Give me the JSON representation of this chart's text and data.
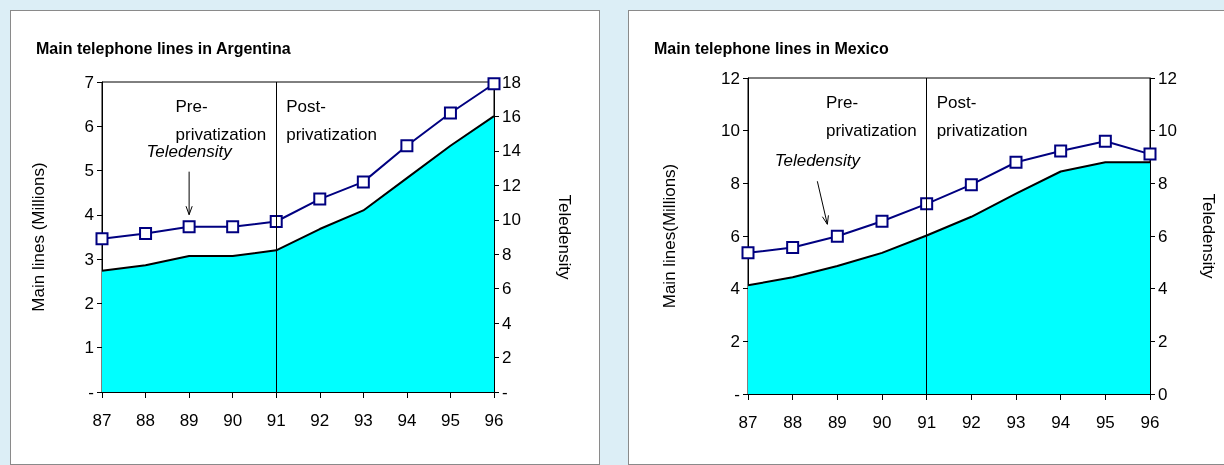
{
  "chart_data": [
    {
      "type": "area",
      "title": "Main telephone lines in Argentina",
      "ylabel": "Main lines (Millions)",
      "y2label": "Teledensity",
      "categories": [
        "87",
        "88",
        "89",
        "90",
        "91",
        "92",
        "93",
        "94",
        "95",
        "96"
      ],
      "series": [
        {
          "color": "#00ffff",
          "values": [
            2.74,
            2.86,
            3.07,
            3.07,
            3.2,
            3.68,
            4.1,
            4.83,
            5.56,
            6.23
          ]
        },
        {
          "type": "line",
          "name": "Teledensity",
          "axis": "y2",
          "color": "#000080",
          "marker": "square",
          "values": [
            8.9,
            9.2,
            9.6,
            9.6,
            9.9,
            11.2,
            12.2,
            14.3,
            16.2,
            17.9
          ]
        }
      ],
      "ylim": [
        0,
        7
      ],
      "yticks": [
        {
          "value": 0,
          "label": "-"
        },
        1,
        2,
        3,
        4,
        5,
        6,
        7
      ],
      "y2lim": [
        0,
        18
      ],
      "y2ticks": [
        {
          "value": 0,
          "label": "-"
        },
        2,
        4,
        6,
        8,
        10,
        12,
        14,
        16,
        18
      ],
      "ref_lines": [
        {
          "axis": "x",
          "value": "91",
          "color": "#000000"
        }
      ],
      "annotations": [
        "Pre-\nprivatization",
        "Post-\nprivatization"
      ],
      "grid": false,
      "legend": false
    },
    {
      "type": "area",
      "title": "Main telephone lines in Mexico",
      "ylabel": "Main lines(Millions)",
      "y2label": "Teledensity",
      "categories": [
        "87",
        "88",
        "89",
        "90",
        "91",
        "92",
        "93",
        "94",
        "95",
        "96"
      ],
      "series": [
        {
          "color": "#00ffff",
          "values": [
            4.13,
            4.43,
            4.86,
            5.36,
            6.02,
            6.73,
            7.61,
            8.45,
            8.8,
            8.8
          ]
        },
        {
          "type": "line",
          "name": "Teledensity",
          "axis": "y2",
          "color": "#000080",
          "marker": "square",
          "values": [
            5.36,
            5.56,
            5.99,
            6.56,
            7.22,
            7.95,
            8.8,
            9.23,
            9.6,
            9.11
          ]
        }
      ],
      "ylim": [
        0,
        12
      ],
      "yticks": [
        {
          "value": 0,
          "label": "-"
        },
        2,
        4,
        6,
        8,
        10,
        12
      ],
      "y2lim": [
        0,
        12
      ],
      "y2ticks": [
        0,
        2,
        4,
        6,
        8,
        10,
        12
      ],
      "ref_lines": [
        {
          "axis": "x",
          "value": "91",
          "color": "#000000"
        }
      ],
      "annotations": [
        "Pre-\nprivatization",
        "Post-\nprivatization"
      ],
      "grid": false,
      "legend": false
    }
  ]
}
